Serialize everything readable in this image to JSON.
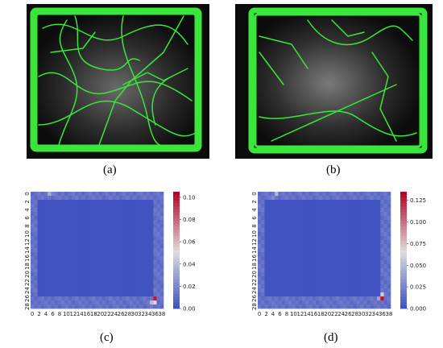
{
  "figure": {
    "captions": [
      "(a)",
      "(b)",
      "(c)",
      "(d)"
    ]
  },
  "colors": {
    "track": "#39e639",
    "photo_bg": "#0b0b0b",
    "heat_low": "#3a4cc0",
    "heat_mid": "#dddddd",
    "heat_high": "#b40426"
  },
  "chart_data": [
    {
      "type": "heatmap",
      "panel": "(c)",
      "xticks": [
        "0",
        "2",
        "4",
        "6",
        "8",
        "10",
        "12",
        "14",
        "16",
        "18",
        "20",
        "22",
        "24",
        "26",
        "28",
        "30",
        "32",
        "34",
        "36",
        "38"
      ],
      "yticks": [
        "0",
        "2",
        "4",
        "6",
        "8",
        "10",
        "12",
        "14",
        "16",
        "18",
        "20",
        "22",
        "24",
        "26",
        "28"
      ],
      "colorbar_ticks": [
        "0.10",
        "0.08",
        "0.06",
        "0.04",
        "0.02",
        "0.00"
      ],
      "vmin": 0.0,
      "vmax": 0.105,
      "grid": [
        39,
        29
      ],
      "hotspots": [
        {
          "x": 36,
          "y": 26,
          "value": 0.1
        },
        {
          "x": 36,
          "y": 27,
          "value": 0.05
        },
        {
          "x": 35,
          "y": 27,
          "value": 0.04
        },
        {
          "x": 5,
          "y": 0,
          "value": 0.035
        },
        {
          "x": 6,
          "y": 0,
          "value": 0.02
        }
      ]
    },
    {
      "type": "heatmap",
      "panel": "(d)",
      "xticks": [
        "0",
        "2",
        "4",
        "6",
        "8",
        "10",
        "12",
        "14",
        "16",
        "18",
        "20",
        "22",
        "24",
        "26",
        "28",
        "30",
        "32",
        "34",
        "36",
        "38"
      ],
      "yticks": [
        "0",
        "2",
        "4",
        "6",
        "8",
        "10",
        "12",
        "14",
        "16",
        "18",
        "20",
        "22",
        "24",
        "26",
        "28"
      ],
      "colorbar_ticks": [
        "0.125",
        "0.100",
        "0.075",
        "0.050",
        "0.025",
        "0.000"
      ],
      "vmin": 0.0,
      "vmax": 0.135,
      "grid": [
        39,
        29
      ],
      "hotspots": [
        {
          "x": 36,
          "y": 26,
          "value": 0.13
        },
        {
          "x": 36,
          "y": 25,
          "value": 0.06
        },
        {
          "x": 35,
          "y": 26,
          "value": 0.04
        },
        {
          "x": 5,
          "y": 0,
          "value": 0.05
        },
        {
          "x": 4,
          "y": 1,
          "value": 0.03
        }
      ]
    }
  ]
}
